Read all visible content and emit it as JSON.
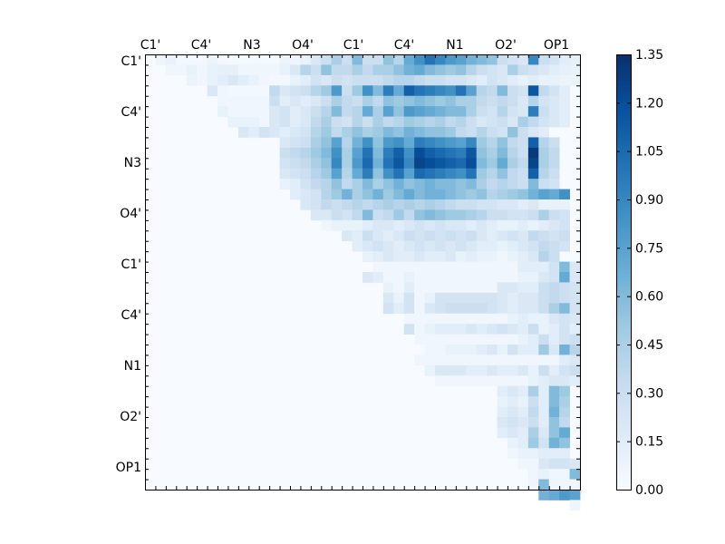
{
  "chart_data": {
    "type": "heatmap",
    "title": "",
    "xlabel": "",
    "ylabel": "",
    "x_tick_labels": [
      "C1'",
      "C4'",
      "N3",
      "O4'",
      "C1'",
      "C4'",
      "N1",
      "O2'",
      "OP1"
    ],
    "y_tick_labels": [
      "C1'",
      "C4'",
      "N3",
      "O4'",
      "C1'",
      "C4'",
      "N1",
      "O2'",
      "OP1"
    ],
    "matrix_size": 42,
    "colormap": "Blues",
    "colorbar": {
      "range": [
        0.0,
        1.35
      ],
      "ticks": [
        "0.00",
        "0.15",
        "0.30",
        "0.45",
        "0.60",
        "0.75",
        "0.90",
        "1.05",
        "1.20",
        "1.35"
      ]
    },
    "rows": [
      {
        "start": 1,
        "values": [
          0.06,
          0.1,
          0.03,
          0.03,
          0.03,
          0.08,
          0.03,
          0.02,
          0.02,
          0.02,
          0.02,
          0.02,
          0.08,
          0.06,
          0.1,
          0.2,
          0.3,
          0.45,
          0.3,
          0.6,
          0.3,
          0.3,
          0.55,
          0.4,
          0.7,
          0.85,
          1.0,
          0.9,
          0.8,
          0.75,
          0.65,
          0.6,
          0.55,
          0.3,
          0.25,
          0.2,
          0.9,
          0.3,
          0.25,
          0.15,
          0.12
        ]
      },
      {
        "start": 2,
        "values": [
          0.05,
          0.05,
          0.1,
          0.05,
          0.1,
          0.12,
          0.12,
          0.05,
          0.05,
          0.05,
          0.05,
          0.1,
          0.2,
          0.4,
          0.3,
          0.55,
          0.35,
          0.35,
          0.45,
          0.35,
          0.45,
          0.45,
          0.55,
          0.65,
          0.7,
          0.6,
          0.55,
          0.5,
          0.55,
          0.4,
          0.3,
          0.25,
          0.2,
          0.45,
          0.3,
          0.25,
          0.2,
          0.15,
          0.12,
          0.1
        ]
      },
      {
        "start": 4,
        "values": [
          0.08,
          0.05,
          0.1,
          0.15,
          0.2,
          0.15,
          0.1,
          0.05,
          0.03,
          0.03,
          0.1,
          0.15,
          0.25,
          0.2,
          0.3,
          0.25,
          0.3,
          0.3,
          0.3,
          0.35,
          0.4,
          0.4,
          0.35,
          0.3,
          0.3,
          0.25,
          0.25,
          0.2,
          0.15,
          0.25,
          0.2,
          0.15,
          0.1,
          0.15,
          0.1,
          0.1,
          0.08,
          0.08
        ]
      },
      {
        "start": 6,
        "values": [
          0.2,
          0.05,
          0.03,
          0.03,
          0.03,
          0.03,
          0.35,
          0.2,
          0.25,
          0.3,
          0.4,
          0.5,
          0.8,
          0.3,
          0.5,
          0.85,
          0.6,
          0.95,
          0.7,
          1.1,
          1.0,
          0.95,
          0.9,
          0.85,
          1.0,
          0.75,
          0.4,
          0.35,
          0.6,
          0.3,
          0.25,
          1.15,
          0.35,
          0.25,
          0.15
        ]
      },
      {
        "start": 7,
        "values": [
          0.05,
          0.05,
          0.05,
          0.05,
          0.05,
          0.3,
          0.15,
          0.2,
          0.15,
          0.2,
          0.3,
          0.45,
          0.35,
          0.3,
          0.45,
          0.35,
          0.55,
          0.5,
          0.55,
          0.6,
          0.55,
          0.5,
          0.55,
          0.45,
          0.45,
          0.35,
          0.3,
          0.35,
          0.3,
          0.2,
          0.4,
          0.25,
          0.2,
          0.15
        ]
      },
      {
        "start": 7,
        "values": [
          0.1,
          0.05,
          0.05,
          0.05,
          0.05,
          0.2,
          0.25,
          0.15,
          0.2,
          0.3,
          0.4,
          0.6,
          0.35,
          0.4,
          0.7,
          0.45,
          0.75,
          0.55,
          0.8,
          0.75,
          0.7,
          0.65,
          0.6,
          0.6,
          0.45,
          0.3,
          0.25,
          0.4,
          0.25,
          0.2,
          0.95,
          0.3,
          0.2,
          0.15
        ]
      },
      {
        "start": 8,
        "values": [
          0.1,
          0.1,
          0.1,
          0.05,
          0.2,
          0.25,
          0.15,
          0.2,
          0.35,
          0.45,
          0.3,
          0.25,
          0.4,
          0.3,
          0.45,
          0.35,
          0.4,
          0.5,
          0.45,
          0.4,
          0.45,
          0.35,
          0.4,
          0.3,
          0.2,
          0.25,
          0.3,
          0.2,
          0.45,
          0.35,
          0.25,
          0.2,
          0.15
        ]
      },
      {
        "start": 9,
        "values": [
          0.2,
          0.15,
          0.25,
          0.2,
          0.15,
          0.2,
          0.25,
          0.4,
          0.5,
          0.35,
          0.45,
          0.55,
          0.45,
          0.5,
          0.6,
          0.55,
          0.65,
          0.6,
          0.55,
          0.55,
          0.5,
          0.35,
          0.3,
          0.4,
          0.3,
          0.25,
          0.55,
          0.3,
          0.2,
          0.15
        ]
      },
      {
        "start": 13,
        "values": [
          0.2,
          0.25,
          0.3,
          0.45,
          0.55,
          0.75,
          0.4,
          0.65,
          0.85,
          0.55,
          0.8,
          0.85,
          0.7,
          0.95,
          0.9,
          0.85,
          0.8,
          0.75,
          0.9,
          0.5,
          0.4,
          0.55,
          0.35,
          0.3,
          1.1,
          0.4,
          0.3
        ]
      },
      {
        "start": 13,
        "values": [
          0.3,
          0.35,
          0.4,
          0.5,
          0.6,
          0.85,
          0.45,
          0.75,
          1.0,
          0.6,
          0.95,
          1.1,
          0.85,
          1.2,
          1.1,
          1.05,
          1.0,
          0.95,
          1.15,
          0.55,
          0.45,
          0.6,
          0.4,
          0.3,
          1.3,
          0.45,
          0.35
        ]
      },
      {
        "start": 13,
        "values": [
          0.25,
          0.3,
          0.35,
          0.45,
          0.55,
          0.9,
          0.45,
          0.8,
          1.05,
          0.65,
          1.0,
          1.15,
          0.9,
          1.25,
          1.2,
          1.15,
          1.1,
          1.05,
          1.2,
          0.6,
          0.5,
          0.7,
          0.45,
          0.35,
          1.25,
          0.45,
          0.35
        ]
      },
      {
        "start": 13,
        "values": [
          0.2,
          0.25,
          0.3,
          0.4,
          0.5,
          0.75,
          0.4,
          0.7,
          0.95,
          0.55,
          0.85,
          1.0,
          0.75,
          1.05,
          1.0,
          0.95,
          0.9,
          0.85,
          1.0,
          0.5,
          0.4,
          0.55,
          0.35,
          0.3,
          1.1,
          0.4,
          0.3
        ]
      },
      {
        "start": 13,
        "values": [
          0.1,
          0.15,
          0.25,
          0.35,
          0.4,
          0.55,
          0.35,
          0.45,
          0.6,
          0.45,
          0.55,
          0.65,
          0.55,
          0.6,
          0.65,
          0.6,
          0.6,
          0.55,
          0.6,
          0.45,
          0.35,
          0.4,
          0.35,
          0.3,
          0.6,
          0.3,
          0.25
        ]
      },
      {
        "start": 14,
        "values": [
          0.15,
          0.2,
          0.25,
          0.4,
          0.5,
          0.65,
          0.45,
          0.55,
          0.65,
          0.5,
          0.6,
          0.7,
          0.6,
          0.65,
          0.65,
          0.6,
          0.55,
          0.5,
          0.55,
          0.4,
          0.45,
          0.5,
          0.55,
          0.65,
          0.75,
          0.7,
          0.85
        ]
      },
      {
        "start": 15,
        "values": [
          0.2,
          0.25,
          0.35,
          0.3,
          0.35,
          0.4,
          0.35,
          0.4,
          0.45,
          0.4,
          0.45,
          0.4,
          0.45,
          0.4,
          0.35,
          0.3,
          0.3,
          0.25,
          0.25,
          0.2,
          0.2,
          0.15,
          0.2,
          0.1,
          0.1,
          0.1
        ]
      },
      {
        "start": 16,
        "values": [
          0.2,
          0.2,
          0.3,
          0.25,
          0.35,
          0.6,
          0.3,
          0.35,
          0.5,
          0.35,
          0.55,
          0.6,
          0.55,
          0.5,
          0.5,
          0.45,
          0.4,
          0.3,
          0.3,
          0.25,
          0.25,
          0.3,
          0.45,
          0.3,
          0.25
        ]
      },
      {
        "start": 17,
        "values": [
          0.05,
          0.1,
          0.1,
          0.1,
          0.15,
          0.2,
          0.2,
          0.15,
          0.2,
          0.25,
          0.2,
          0.25,
          0.2,
          0.2,
          0.15,
          0.2,
          0.15,
          0.1,
          0.1,
          0.15,
          0.1,
          0.15,
          0.2,
          0.25
        ]
      },
      {
        "start": 19,
        "values": [
          0.2,
          0.15,
          0.3,
          0.2,
          0.15,
          0.2,
          0.3,
          0.25,
          0.3,
          0.25,
          0.3,
          0.25,
          0.3,
          0.2,
          0.15,
          0.2,
          0.25,
          0.2,
          0.35,
          0.3,
          0.25,
          0.3
        ]
      },
      {
        "start": 20,
        "values": [
          0.15,
          0.2,
          0.25,
          0.2,
          0.15,
          0.2,
          0.25,
          0.2,
          0.25,
          0.2,
          0.25,
          0.2,
          0.15,
          0.15,
          0.1,
          0.15,
          0.2,
          0.25,
          0.35,
          0.3,
          0.25
        ]
      },
      {
        "start": 21,
        "values": [
          0.1,
          0.15,
          0.2,
          0.15,
          0.15,
          0.2,
          0.15,
          0.15,
          0.2,
          0.1,
          0.15,
          0.1,
          0.1,
          0.05,
          0.1,
          0.15,
          0.2,
          0.4,
          0.3
        ]
      },
      {
        "start": 22,
        "values": [
          0.05,
          0.05,
          0.05,
          0.05,
          0.05,
          0.05,
          0.05,
          0.05,
          0.05,
          0.05,
          0.05,
          0.05,
          0.05,
          0.05,
          0.15,
          0.15,
          0.15,
          0.25,
          0.6,
          0.2
        ]
      },
      {
        "start": 21,
        "values": [
          0.2,
          0.15,
          0.05,
          0.05,
          0.1,
          0.05,
          0.05,
          0.05,
          0.05,
          0.05,
          0.05,
          0.05,
          0.05,
          0.05,
          0.05,
          0.1,
          0.1,
          0.2,
          0.25,
          0.7,
          0.2
        ]
      },
      {
        "start": 23,
        "values": [
          0.1,
          0.05,
          0.15,
          0.05,
          0.05,
          0.05,
          0.05,
          0.05,
          0.05,
          0.05,
          0.05,
          0.2,
          0.2,
          0.15,
          0.15,
          0.3,
          0.35,
          0.3,
          0.25
        ]
      },
      {
        "start": 23,
        "values": [
          0.2,
          0.1,
          0.25,
          0.05,
          0.1,
          0.25,
          0.25,
          0.25,
          0.25,
          0.25,
          0.25,
          0.2,
          0.15,
          0.2,
          0.2,
          0.3,
          0.35,
          0.3,
          0.25
        ]
      },
      {
        "start": 23,
        "values": [
          0.25,
          0.15,
          0.25,
          0.05,
          0.2,
          0.25,
          0.3,
          0.3,
          0.3,
          0.3,
          0.25,
          0.2,
          0.15,
          0.2,
          0.2,
          0.3,
          0.45,
          0.6,
          0.25
        ]
      },
      {
        "start": 25,
        "values": [
          0.05,
          0.05,
          0.05,
          0.05,
          0.05,
          0.05,
          0.05,
          0.05,
          0.05,
          0.05,
          0.1,
          0.15,
          0.1,
          0.1,
          0.2,
          0.25,
          0.2
        ]
      },
      {
        "start": 25,
        "values": [
          0.25,
          0.05,
          0.1,
          0.15,
          0.15,
          0.15,
          0.2,
          0.15,
          0.2,
          0.25,
          0.2,
          0.15,
          0.3,
          0.1,
          0.15,
          0.25,
          0.15
        ]
      },
      {
        "start": 26,
        "values": [
          0.05,
          0.05,
          0.05,
          0.05,
          0.05,
          0.05,
          0.05,
          0.05,
          0.05,
          0.05,
          0.1,
          0.15,
          0.3,
          0.15,
          0.25,
          0.3,
          0.55
        ]
      },
      {
        "start": 27,
        "values": [
          0.05,
          0.05,
          0.1,
          0.1,
          0.1,
          0.15,
          0.2,
          0.1,
          0.25,
          0.15,
          0.15,
          0.5,
          0.2,
          0.65,
          0.4
        ]
      },
      {
        "start": 26,
        "values": [
          0.05,
          0.05,
          0.05,
          0.05,
          0.05,
          0.05,
          0.05,
          0.05,
          0.05,
          0.05,
          0.05,
          0.05,
          0.05,
          0.05,
          0.15,
          0.2,
          0.15
        ]
      },
      {
        "start": 27,
        "values": [
          0.1,
          0.2,
          0.2,
          0.2,
          0.15,
          0.15,
          0.2,
          0.15,
          0.15,
          0.2,
          0.1,
          0.3,
          0.15,
          0.25,
          0.3
        ]
      },
      {
        "start": 28,
        "values": [
          0.05,
          0.05,
          0.05,
          0.05,
          0.05,
          0.05,
          0.05,
          0.05,
          0.05,
          0.1,
          0.15,
          0.2,
          0.2,
          0.15,
          0.15,
          0.35
        ]
      },
      {
        "start": 34,
        "values": [
          0.15,
          0.2,
          0.15,
          0.45,
          0.15,
          0.6,
          0.5
        ]
      },
      {
        "start": 34,
        "values": [
          0.1,
          0.15,
          0.1,
          0.3,
          0.15,
          0.6,
          0.45
        ]
      },
      {
        "start": 34,
        "values": [
          0.15,
          0.2,
          0.15,
          0.35,
          0.15,
          0.65,
          0.4
        ]
      },
      {
        "start": 34,
        "values": [
          0.2,
          0.25,
          0.2,
          0.3,
          0.15,
          0.55,
          0.35
        ]
      },
      {
        "start": 34,
        "values": [
          0.15,
          0.2,
          0.15,
          0.45,
          0.2,
          0.55,
          0.7
        ]
      },
      {
        "start": 35,
        "values": [
          0.1,
          0.15,
          0.5,
          0.25,
          0.65,
          0.55
        ]
      },
      {
        "start": 35,
        "values": [
          0.05,
          0.1,
          0.1,
          0.15,
          0.15,
          0.15
        ]
      },
      {
        "start": 36,
        "values": [
          0.05,
          0.05,
          0.2,
          0.25,
          0.25,
          0.2
        ]
      },
      {
        "start": 37,
        "values": [
          0.05,
          0.1,
          0.05,
          0.05,
          0.6,
          0.1
        ]
      },
      {
        "start": 37,
        "values": [
          0.05,
          0.6,
          0.05,
          0.05,
          0.05
        ]
      },
      {
        "start": 38,
        "values": [
          0.65,
          0.7,
          0.8,
          0.75
        ]
      },
      {
        "start": 41,
        "values": [
          0.05
        ]
      }
    ]
  }
}
